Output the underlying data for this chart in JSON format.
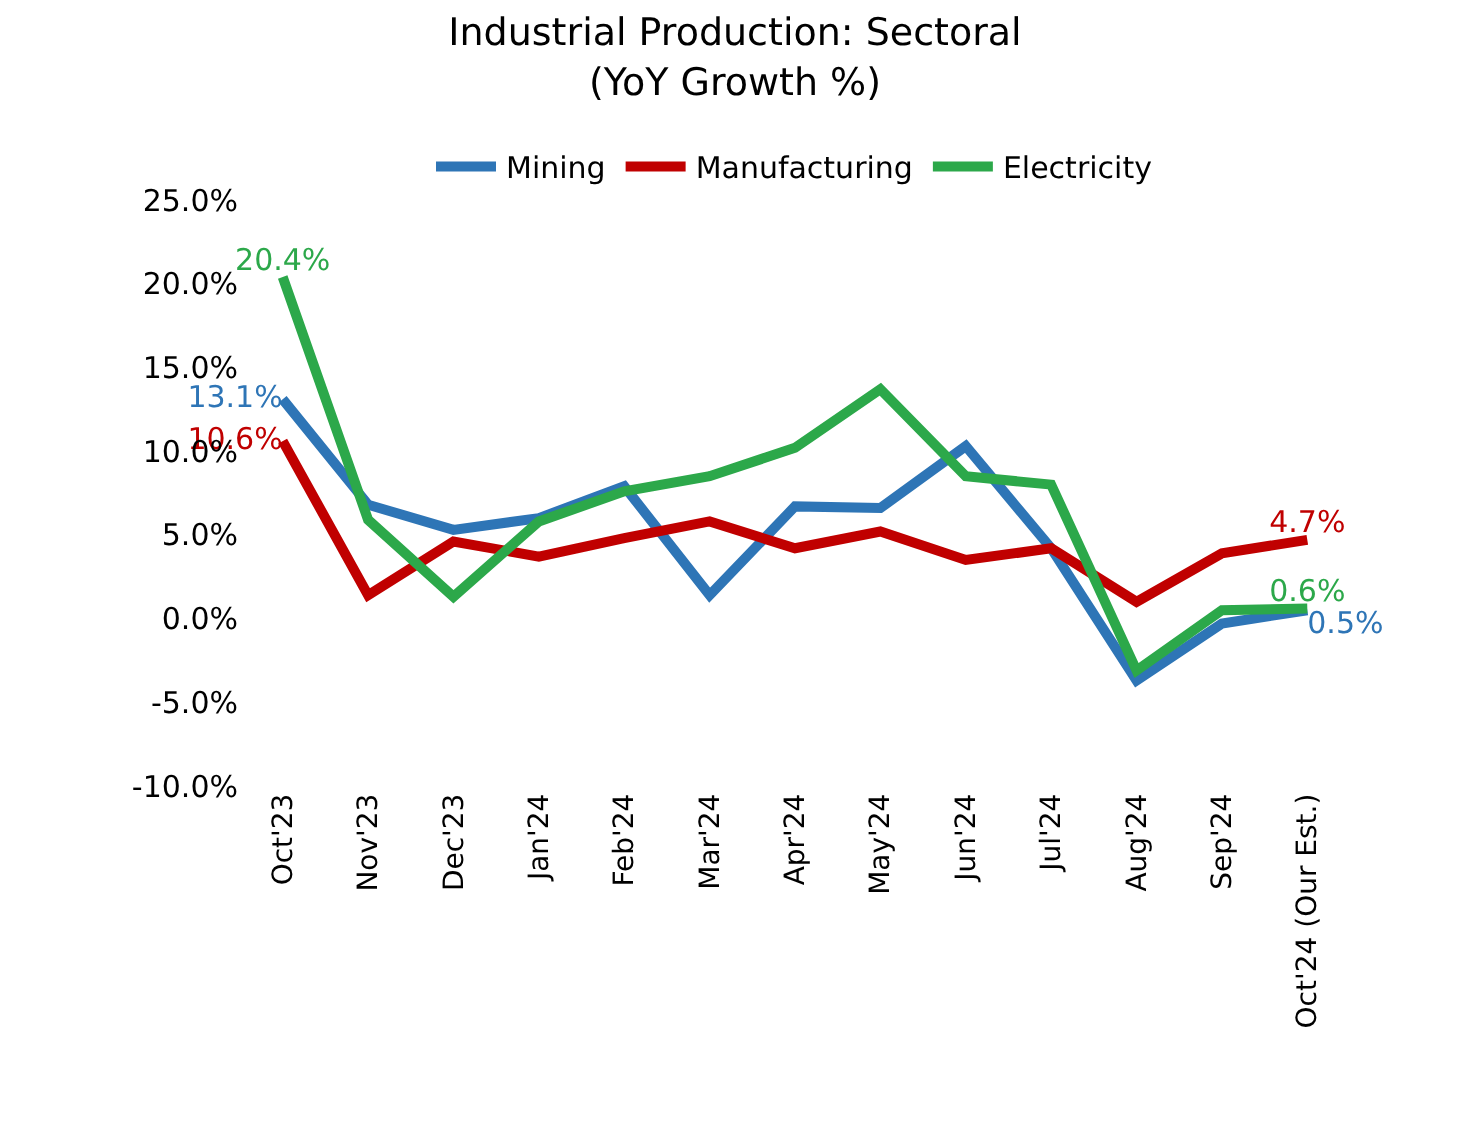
{
  "chart_data": {
    "type": "line",
    "title": "Industrial Production: Sectoral\n(YoY Growth %)",
    "categories": [
      "Oct'23",
      "Nov'23",
      "Dec'23",
      "Jan'24",
      "Feb'24",
      "Mar'24",
      "Apr'24",
      "May'24",
      "Jun'24",
      "Jul'24",
      "Aug'24",
      "Sep'24",
      "Oct'24 (Our Est.)"
    ],
    "series": [
      {
        "name": "Mining",
        "color": "#2e75b6",
        "values": [
          13.1,
          6.8,
          5.3,
          6.0,
          7.9,
          1.4,
          6.7,
          6.6,
          10.3,
          4.2,
          -3.7,
          -0.3,
          0.5
        ],
        "value_labels": [
          "13.1%",
          null,
          null,
          null,
          null,
          null,
          null,
          null,
          null,
          null,
          null,
          null,
          "0.5%"
        ]
      },
      {
        "name": "Manufacturing",
        "color": "#c00000",
        "values": [
          10.6,
          1.4,
          4.6,
          3.7,
          4.8,
          5.8,
          4.2,
          5.2,
          3.5,
          4.2,
          1.0,
          3.9,
          4.7
        ],
        "value_labels": [
          "10.6%",
          null,
          null,
          null,
          null,
          null,
          null,
          null,
          null,
          null,
          null,
          null,
          "4.7%"
        ]
      },
      {
        "name": "Electricity",
        "color": "#2ca84a",
        "values": [
          20.4,
          5.9,
          1.3,
          5.8,
          7.6,
          8.5,
          10.2,
          13.7,
          8.5,
          8.0,
          -3.1,
          0.5,
          0.6
        ],
        "value_labels": [
          "20.4%",
          null,
          null,
          null,
          null,
          null,
          null,
          null,
          null,
          null,
          null,
          null,
          "0.6%"
        ]
      }
    ],
    "ylim": [
      -10,
      25
    ],
    "yticks": [
      {
        "value": -10,
        "label": "-10.0%"
      },
      {
        "value": -5,
        "label": "-5.0%"
      },
      {
        "value": 0,
        "label": "0.0%"
      },
      {
        "value": 5,
        "label": "5.0%"
      },
      {
        "value": 10,
        "label": "10.0%"
      },
      {
        "value": 15,
        "label": "15.0%"
      },
      {
        "value": 20,
        "label": "20.0%"
      },
      {
        "value": 25,
        "label": "25.0%"
      }
    ],
    "legend": "top",
    "marker": "none",
    "line_style": "solid"
  }
}
